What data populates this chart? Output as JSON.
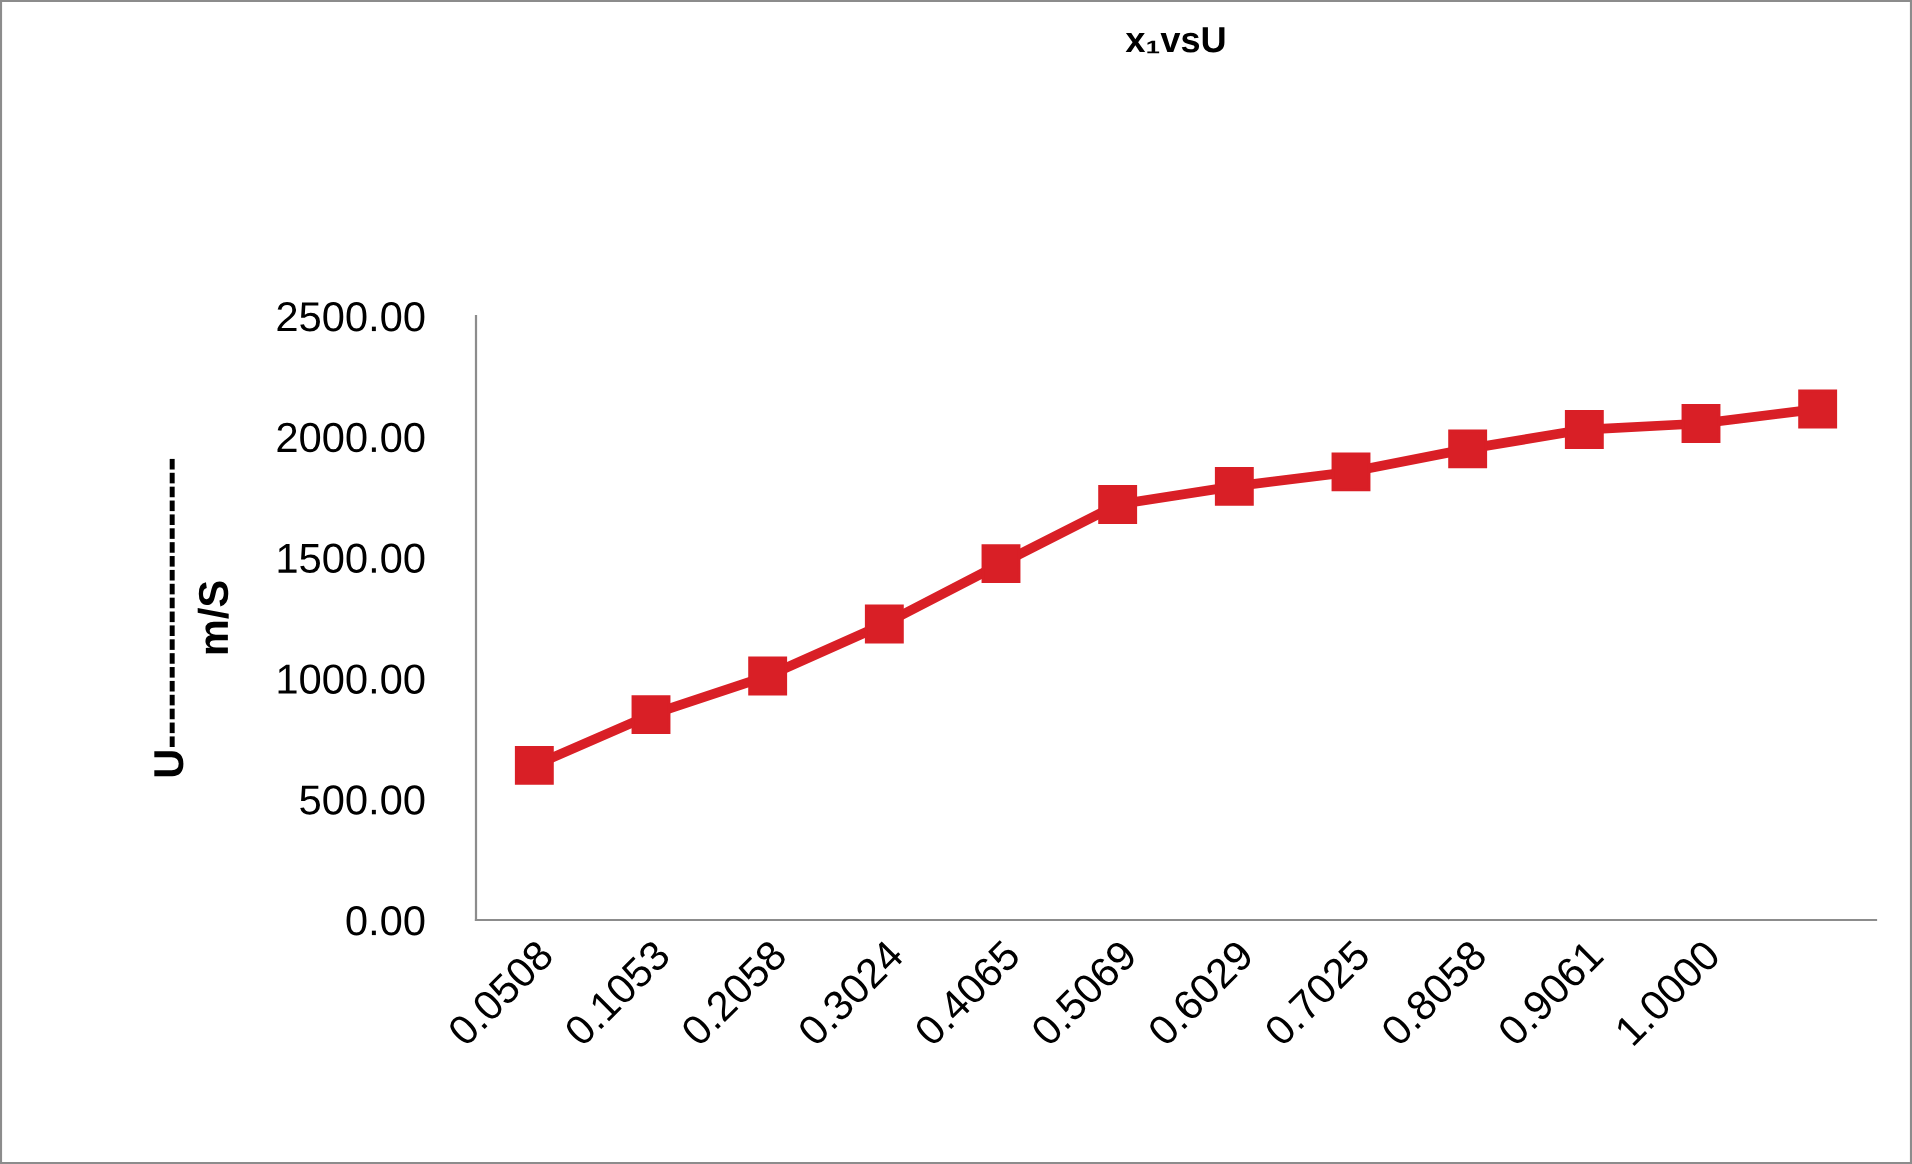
{
  "chart_data": {
    "type": "line",
    "title": "x₁vsU",
    "ylabel": "U---------------------\nm/S",
    "categories": [
      "0.0508",
      "0.1053",
      "0.2058",
      "0.3024",
      "0.4065",
      "0.5069",
      "0.6029",
      "0.7025",
      "0.8058",
      "0.9061",
      "1.0000",
      null
    ],
    "series": [
      {
        "color": "#d91f26",
        "values": [
          640,
          850,
          1010,
          1225,
          1475,
          1720,
          1795,
          1855,
          1950,
          2030,
          2055,
          2115
        ]
      }
    ],
    "ylim": [
      0,
      2500
    ],
    "yticks": [
      {
        "value": 0,
        "label": "0.00"
      },
      {
        "value": 500,
        "label": "500.00"
      },
      {
        "value": 1000,
        "label": "1000.00"
      },
      {
        "value": 1500,
        "label": "1500.00"
      },
      {
        "value": 2000,
        "label": "2000.00"
      },
      {
        "value": 2500,
        "label": "2500.00"
      }
    ],
    "grid": false,
    "legend": false,
    "marker": "square",
    "line_style": "solid"
  }
}
